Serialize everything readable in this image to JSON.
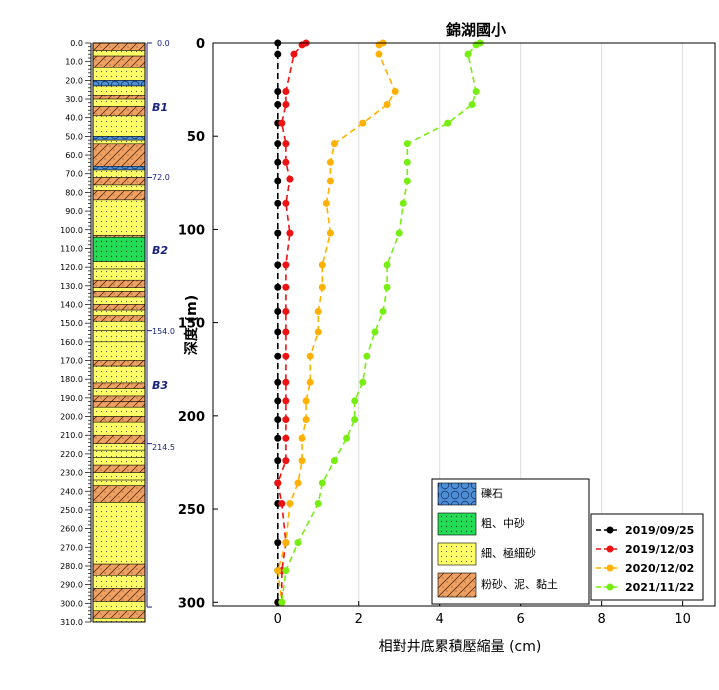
{
  "log": {
    "depth_ticks": [
      "0.0",
      "10.0",
      "20.0",
      "30.0",
      "40.0",
      "50.0",
      "60.0",
      "70.0",
      "80.0",
      "90.0",
      "100.0",
      "110.0",
      "120.0",
      "130.0",
      "140.0",
      "150.0",
      "160.0",
      "170.0",
      "180.0",
      "190.0",
      "200.0",
      "210.0",
      "220.0",
      "230.0",
      "240.0",
      "250.0",
      "260.0",
      "270.0",
      "280.0",
      "290.0",
      "300.0",
      "310.0"
    ],
    "boundary_labels": [
      "0.0",
      "72.0",
      "154.0",
      "214.5"
    ],
    "bed_labels": [
      "B1",
      "B2",
      "B3"
    ],
    "legend": [
      "礫石",
      "粗、中砂",
      "細、極細砂",
      "粉砂、泥、黏土"
    ],
    "colors": {
      "gravel": "#4f8fd6",
      "coarse_sand": "#22dd55",
      "fine_sand": "#ffff66",
      "silt": "#f0a060"
    }
  },
  "chart_data": {
    "type": "line",
    "title": "錦湖國小",
    "xlabel": "相對井底累積壓縮量 (cm)",
    "ylabel": "深度 (m)",
    "xlim": [
      -1.6,
      10.8
    ],
    "ylim": [
      0,
      302
    ],
    "xticks": [
      "0",
      "2",
      "4",
      "6",
      "8",
      "10"
    ],
    "yticks": [
      "0",
      "50",
      "100",
      "150",
      "200",
      "250",
      "300"
    ],
    "grid": true,
    "legend_position": "bottom-right",
    "series": [
      {
        "name": "2019/09/25",
        "color": "#000000",
        "points": [
          [
            0,
            0
          ],
          [
            0,
            6
          ],
          [
            0,
            26
          ],
          [
            0,
            33
          ],
          [
            0,
            43
          ],
          [
            0,
            54
          ],
          [
            0,
            64
          ],
          [
            0,
            74
          ],
          [
            0,
            86
          ],
          [
            0,
            102
          ],
          [
            0,
            119
          ],
          [
            0,
            131
          ],
          [
            0,
            144
          ],
          [
            0,
            155
          ],
          [
            0,
            168
          ],
          [
            0,
            182
          ],
          [
            0,
            192
          ],
          [
            0,
            202
          ],
          [
            0,
            212
          ],
          [
            0,
            224
          ],
          [
            0,
            236
          ],
          [
            0,
            247
          ],
          [
            0,
            268
          ],
          [
            0,
            283
          ],
          [
            0,
            300
          ]
        ]
      },
      {
        "name": "2019/12/03",
        "color": "#ee1111",
        "points": [
          [
            0.7,
            0
          ],
          [
            0.6,
            1
          ],
          [
            0.4,
            6
          ],
          [
            0.2,
            26
          ],
          [
            0.2,
            33
          ],
          [
            0.1,
            43
          ],
          [
            0.2,
            54
          ],
          [
            0.2,
            64
          ],
          [
            0.3,
            73
          ],
          [
            0.2,
            86
          ],
          [
            0.3,
            102
          ],
          [
            0.2,
            119
          ],
          [
            0.2,
            131
          ],
          [
            0.2,
            144
          ],
          [
            0.2,
            155
          ],
          [
            0.2,
            168
          ],
          [
            0.2,
            182
          ],
          [
            0.2,
            192
          ],
          [
            0.2,
            202
          ],
          [
            0.2,
            212
          ],
          [
            0.2,
            224
          ],
          [
            0,
            236
          ],
          [
            0.1,
            247
          ],
          [
            0.2,
            268
          ],
          [
            0.1,
            283
          ],
          [
            0.1,
            300
          ]
        ]
      },
      {
        "name": "2020/12/02",
        "color": "#ffb000",
        "points": [
          [
            2.6,
            0
          ],
          [
            2.5,
            1
          ],
          [
            2.5,
            6
          ],
          [
            2.9,
            26
          ],
          [
            2.7,
            33
          ],
          [
            2.1,
            43
          ],
          [
            1.4,
            54
          ],
          [
            1.3,
            64
          ],
          [
            1.3,
            74
          ],
          [
            1.2,
            86
          ],
          [
            1.3,
            102
          ],
          [
            1.1,
            119
          ],
          [
            1.1,
            131
          ],
          [
            1.0,
            144
          ],
          [
            1.0,
            155
          ],
          [
            0.8,
            168
          ],
          [
            0.8,
            182
          ],
          [
            0.7,
            192
          ],
          [
            0.7,
            202
          ],
          [
            0.6,
            212
          ],
          [
            0.6,
            224
          ],
          [
            0.5,
            236
          ],
          [
            0.3,
            247
          ],
          [
            0.2,
            268
          ],
          [
            0,
            283
          ],
          [
            0.1,
            300
          ]
        ]
      },
      {
        "name": "2021/11/22",
        "color": "#77ee11",
        "points": [
          [
            5.0,
            0
          ],
          [
            4.9,
            1
          ],
          [
            4.7,
            6
          ],
          [
            4.9,
            26
          ],
          [
            4.8,
            33
          ],
          [
            4.2,
            43
          ],
          [
            3.2,
            54
          ],
          [
            3.2,
            64
          ],
          [
            3.2,
            74
          ],
          [
            3.1,
            86
          ],
          [
            3.0,
            102
          ],
          [
            2.7,
            119
          ],
          [
            2.7,
            131
          ],
          [
            2.6,
            144
          ],
          [
            2.4,
            155
          ],
          [
            2.2,
            168
          ],
          [
            2.1,
            182
          ],
          [
            1.9,
            192
          ],
          [
            1.9,
            202
          ],
          [
            1.7,
            212
          ],
          [
            1.4,
            224
          ],
          [
            1.1,
            236
          ],
          [
            1.0,
            247
          ],
          [
            0.5,
            268
          ],
          [
            0.2,
            283
          ],
          [
            0.1,
            300
          ]
        ]
      }
    ]
  }
}
